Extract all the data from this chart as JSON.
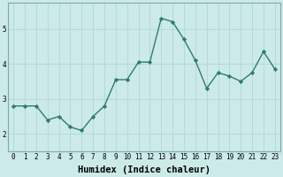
{
  "x": [
    0,
    1,
    2,
    3,
    4,
    5,
    6,
    7,
    8,
    9,
    10,
    11,
    12,
    13,
    14,
    15,
    16,
    17,
    18,
    19,
    20,
    21,
    22,
    23
  ],
  "y": [
    2.8,
    2.8,
    2.8,
    2.4,
    2.5,
    2.2,
    2.1,
    2.5,
    2.8,
    3.55,
    3.55,
    4.05,
    4.05,
    5.3,
    5.2,
    4.7,
    4.1,
    3.3,
    3.75,
    3.65,
    3.5,
    3.75,
    4.35,
    3.85
  ],
  "xlabel": "Humidex (Indice chaleur)",
  "ylabel": "",
  "xlim": [
    -0.5,
    23.5
  ],
  "ylim": [
    1.5,
    5.75
  ],
  "yticks": [
    2,
    3,
    4,
    5
  ],
  "xticks": [
    0,
    1,
    2,
    3,
    4,
    5,
    6,
    7,
    8,
    9,
    10,
    11,
    12,
    13,
    14,
    15,
    16,
    17,
    18,
    19,
    20,
    21,
    22,
    23
  ],
  "line_color": "#2e7d6e",
  "marker": "D",
  "marker_size": 2.2,
  "bg_color": "#cceae8",
  "grid_color": "#b0d8d5",
  "tick_fontsize": 5.5,
  "xlabel_fontsize": 7.5,
  "lw": 1.0
}
